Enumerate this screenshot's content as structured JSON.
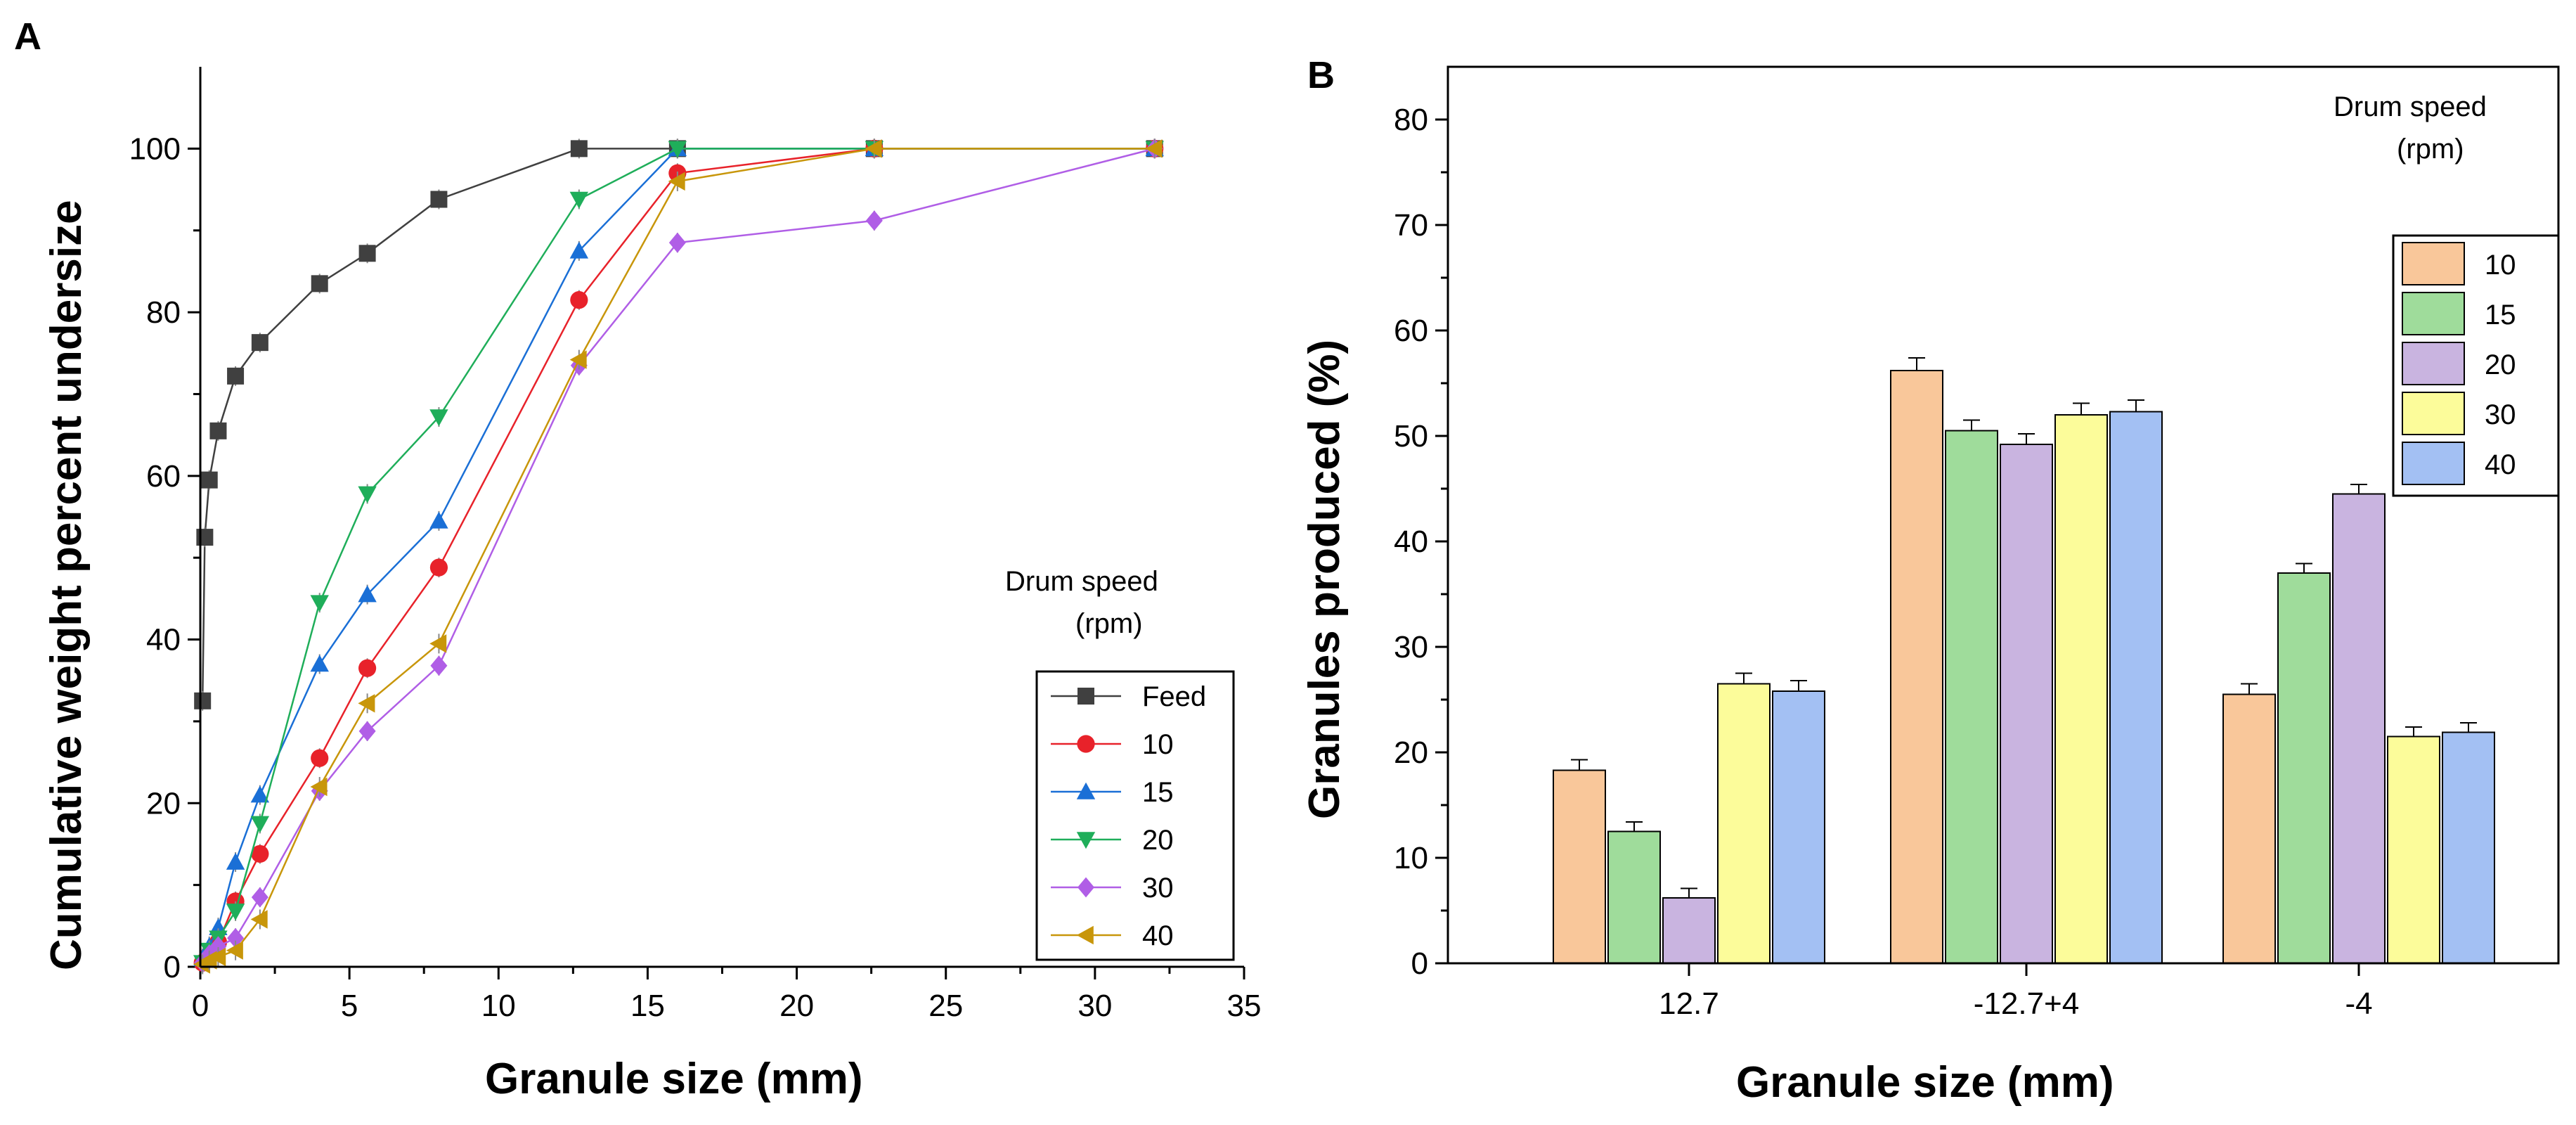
{
  "figure": {
    "panel_labels": [
      "A",
      "B"
    ]
  },
  "chart_data": [
    {
      "panel": "A",
      "type": "line",
      "xlabel": "Granule size (mm)",
      "ylabel": "Cumulative weight percent undersize",
      "xlim": [
        0,
        35
      ],
      "ylim": [
        0,
        110
      ],
      "xticks": [
        0,
        5,
        10,
        15,
        20,
        25,
        30,
        35
      ],
      "yticks": [
        0,
        20,
        40,
        60,
        80,
        100
      ],
      "legend_title": "Drum speed\n(rpm)",
      "legend_title_lines": [
        "Drum speed",
        "(rpm)"
      ],
      "legend_position": "bottom-right",
      "series": [
        {
          "name": "Feed",
          "color": "#404040",
          "marker": "square",
          "x": [
            0.075,
            0.15,
            0.3,
            0.6,
            1.18,
            2.0,
            4.0,
            5.6,
            8.0,
            12.7,
            16.0,
            22.6,
            32.0
          ],
          "y": [
            32.5,
            52.5,
            59.5,
            65.5,
            72.2,
            76.3,
            83.5,
            87.2,
            93.8,
            100,
            100,
            100,
            100
          ]
        },
        {
          "name": "10",
          "color": "#e8222a",
          "marker": "circle",
          "x": [
            0.075,
            0.3,
            0.6,
            1.18,
            2.0,
            4.0,
            5.6,
            8.0,
            12.7,
            16.0,
            22.6,
            32.0
          ],
          "y": [
            0.5,
            1.5,
            3.0,
            8.0,
            13.8,
            25.5,
            36.5,
            48.8,
            81.5,
            97.0,
            100,
            100
          ]
        },
        {
          "name": "15",
          "color": "#1a6fd6",
          "marker": "triangle-up",
          "x": [
            0.075,
            0.3,
            0.6,
            1.18,
            2.0,
            4.0,
            5.6,
            8.0,
            12.7,
            16.0,
            22.6,
            32.0
          ],
          "y": [
            1.0,
            2.5,
            4.8,
            12.8,
            21.0,
            37.0,
            45.5,
            54.5,
            87.5,
            100,
            100,
            100
          ]
        },
        {
          "name": "20",
          "color": "#1fae5a",
          "marker": "triangle-down",
          "x": [
            0.075,
            0.3,
            0.6,
            1.18,
            2.0,
            4.0,
            5.6,
            8.0,
            12.7,
            16.0,
            22.6,
            32.0
          ],
          "y": [
            0.5,
            2.0,
            3.5,
            6.8,
            17.5,
            44.5,
            57.8,
            67.2,
            93.8,
            100,
            100,
            100
          ]
        },
        {
          "name": "30",
          "color": "#b05ee6",
          "marker": "diamond",
          "x": [
            0.075,
            0.3,
            0.6,
            1.18,
            2.0,
            4.0,
            5.6,
            8.0,
            12.7,
            16.0,
            22.6,
            32.0
          ],
          "y": [
            0.5,
            1.5,
            2.5,
            3.5,
            8.5,
            21.5,
            28.8,
            36.8,
            73.5,
            88.5,
            91.2,
            100
          ]
        },
        {
          "name": "40",
          "color": "#c8960a",
          "marker": "triangle-left",
          "x": [
            0.075,
            0.3,
            0.6,
            1.18,
            2.0,
            4.0,
            5.6,
            8.0,
            12.7,
            16.0,
            22.6,
            32.0
          ],
          "y": [
            0.3,
            0.8,
            1.2,
            2.0,
            5.8,
            22.0,
            32.2,
            39.5,
            74.2,
            96.0,
            100,
            100
          ]
        }
      ]
    },
    {
      "panel": "B",
      "type": "bar",
      "xlabel": "Granule size (mm)",
      "ylabel": "Granules produced (%)",
      "ylim": [
        0,
        85
      ],
      "yticks": [
        0,
        10,
        20,
        30,
        40,
        50,
        60,
        70,
        80
      ],
      "categories": [
        "12.7",
        "-12.7+4",
        "-4"
      ],
      "legend_title": "Drum speed\n(rpm)",
      "legend_title_lines": [
        "Drum speed",
        "(rpm)"
      ],
      "legend_position": "top-right",
      "series": [
        {
          "name": "10",
          "color": "#f9c79a",
          "values": [
            18.3,
            56.2,
            25.5
          ],
          "errors": [
            1.0,
            1.2,
            1.0
          ]
        },
        {
          "name": "15",
          "color": "#9fdc9b",
          "values": [
            12.5,
            50.5,
            37.0
          ],
          "errors": [
            0.9,
            1.0,
            0.9
          ]
        },
        {
          "name": "20",
          "color": "#c9b4e0",
          "values": [
            6.2,
            49.2,
            44.5
          ],
          "errors": [
            0.9,
            1.0,
            0.9
          ]
        },
        {
          "name": "30",
          "color": "#fcfc9a",
          "values": [
            26.5,
            52.0,
            21.5
          ],
          "errors": [
            1.0,
            1.1,
            0.9
          ]
        },
        {
          "name": "40",
          "color": "#a3c0f3",
          "values": [
            25.8,
            52.3,
            21.9
          ],
          "errors": [
            1.0,
            1.1,
            0.9
          ]
        }
      ]
    }
  ]
}
